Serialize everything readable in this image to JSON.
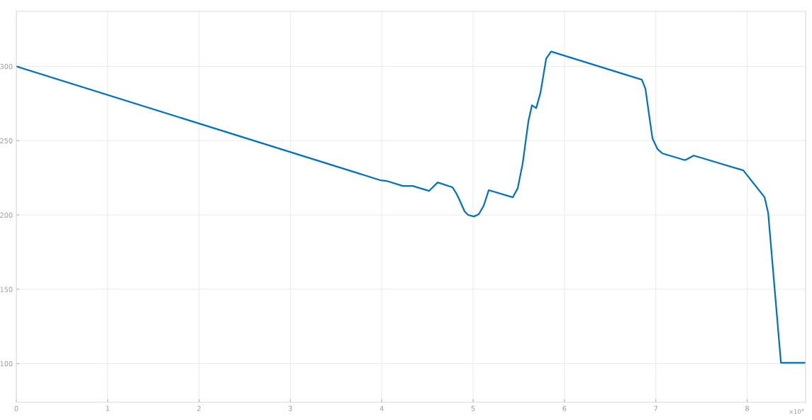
{
  "chart_data": {
    "type": "line",
    "x": [
      0,
      3.99,
      4.053,
      4.231,
      4.34,
      4.519,
      4.612,
      4.775,
      4.814,
      4.845,
      4.907,
      4.946,
      5.008,
      5.062,
      5.116,
      5.171,
      5.435,
      5.489,
      5.543,
      5.606,
      5.644,
      5.691,
      5.738,
      5.8,
      5.854,
      6.848,
      6.887,
      6.925,
      6.964,
      7.019,
      7.073,
      7.306,
      7.329,
      7.415,
      7.958,
      8.191,
      8.23,
      8.37,
      8.64
    ],
    "series": [
      {
        "color": "#0072bd",
        "values": [
          300,
          223.3,
          222.9,
          219.5,
          219.5,
          216.2,
          221.9,
          218.6,
          214.8,
          211,
          202.4,
          200,
          199,
          200.5,
          206.2,
          216.7,
          211.9,
          218.1,
          234.8,
          263.3,
          273.8,
          271.9,
          282.4,
          305.2,
          310,
          291,
          284.8,
          268,
          251.4,
          244.3,
          241.4,
          237.1,
          237.1,
          240,
          230,
          211.9,
          201.4,
          100.5,
          100.5
        ]
      }
    ],
    "xlim": [
      0,
      8.64
    ],
    "ylim": [
      74,
      337
    ],
    "xticks": [
      0,
      1,
      2,
      3,
      4,
      5,
      6,
      7,
      8
    ],
    "yticks": [
      100,
      150,
      200,
      250,
      300
    ],
    "annotations": [
      "×10$^{4}$"
    ],
    "grid": true,
    "marker": "none",
    "line_style": "solid"
  }
}
